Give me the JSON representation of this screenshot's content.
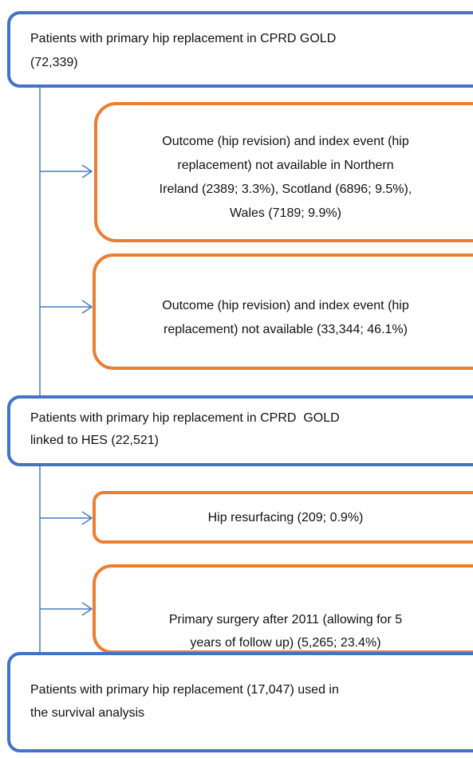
{
  "nodes": [
    {
      "lines": [
        "Patients with primary hip replacement in CPRD GOLD",
        "(72,339)"
      ]
    },
    {
      "lines": [
        "Outcome (hip revision) and index event (hip",
        "replacement) not available in Northern",
        "Ireland (2389; 3.3%), Scotland (6896; 9.5%),",
        "Wales (7189; 9.9%)"
      ]
    },
    {
      "lines": [
        "Outcome (hip revision) and index event (hip",
        "replacement) not available (33,344; 46.1%)"
      ]
    },
    {
      "lines": [
        "Patients with primary hip replacement in CPRD  GOLD",
        "linked to HES (22,521)"
      ]
    },
    {
      "lines": [
        "Hip resurfacing (209; 0.9%)"
      ]
    },
    {
      "lines": [
        "Primary surgery after 2011 (allowing for 5",
        "years of follow up) (5,265; 23.4%)"
      ]
    },
    {
      "lines": [
        "Patients with primary hip replacement (17,047) used in",
        "the survival analysis"
      ]
    }
  ]
}
